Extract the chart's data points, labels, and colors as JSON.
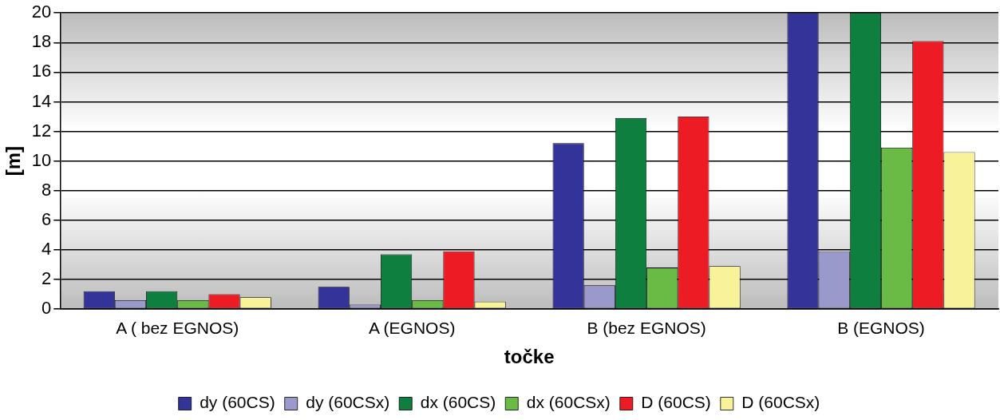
{
  "chart_data": {
    "type": "bar",
    "xlabel": "točke",
    "ylabel": "[m]",
    "categories": [
      "A ( bez EGNOS)",
      "A (EGNOS)",
      "B (bez EGNOS)",
      "B (EGNOS)"
    ],
    "series": [
      {
        "name": "dy (60CS)",
        "color": "#333399",
        "values": [
          1.2,
          1.5,
          11.2,
          20
        ]
      },
      {
        "name": "dy (60CSx)",
        "color": "#9999cc",
        "values": [
          0.6,
          0.3,
          1.6,
          3.9
        ]
      },
      {
        "name": "dx (60CS)",
        "color": "#0f7f3f",
        "values": [
          1.2,
          3.7,
          12.9,
          20
        ]
      },
      {
        "name": "dx (60CSx)",
        "color": "#6abb45",
        "values": [
          0.6,
          0.6,
          2.8,
          10.9
        ]
      },
      {
        "name": "D (60CS)",
        "color": "#ed1c24",
        "values": [
          1.0,
          3.9,
          13.0,
          18.1
        ]
      },
      {
        "name": "D (60CSx)",
        "color": "#f8f29a",
        "values": [
          0.8,
          0.5,
          2.9,
          10.6
        ]
      }
    ],
    "ylim": [
      0,
      20
    ],
    "yticks": [
      0,
      2,
      4,
      6,
      8,
      10,
      12,
      14,
      16,
      18,
      20
    ],
    "grid": "y",
    "legend": "bottom"
  }
}
